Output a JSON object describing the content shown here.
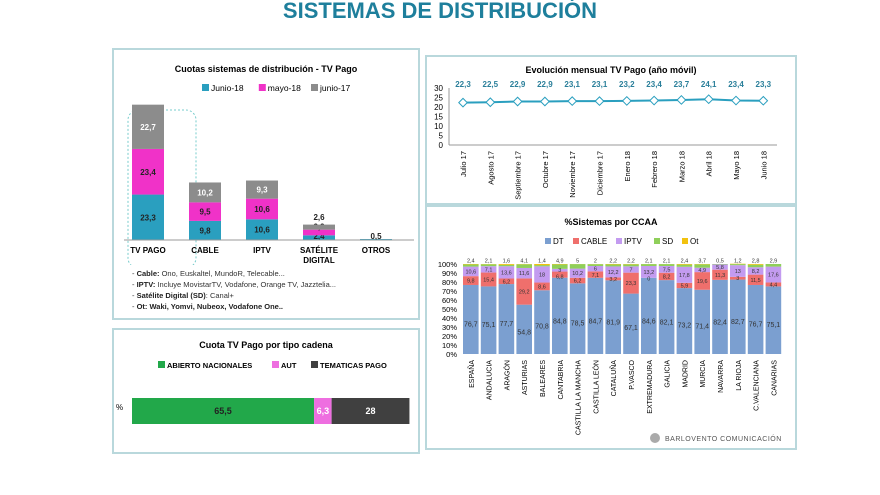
{
  "page_title": "SISTEMAS DE DISTRIBUCIÓN",
  "brand": "BARLOVENTO COMUNICACIÓN",
  "chart_data": [
    {
      "type": "bar",
      "stacked": true,
      "title": "Cuotas sistemas de distribución - TV Pago",
      "categories": [
        "TV PAGO",
        "CABLE",
        "IPTV",
        "SATÉLITE DIGITAL",
        "OTROS"
      ],
      "series": [
        {
          "name": "Junio-18",
          "values": [
            23.3,
            9.8,
            10.6,
            2.4,
            0.5
          ]
        },
        {
          "name": "mayo-18",
          "values": [
            23.4,
            9.5,
            10.6,
            2.9,
            null
          ]
        },
        {
          "name": "junio-17",
          "values": [
            22.7,
            10.2,
            9.3,
            2.6,
            null
          ]
        }
      ],
      "colors": [
        "#2a9fbf",
        "#f032c8",
        "#8c8c8c"
      ],
      "legend": "top",
      "highlighted": "TV PAGO"
    },
    {
      "type": "line",
      "title": "Evolución mensual TV Pago (año móvil)",
      "x": [
        "Julio 17",
        "Agosto 17",
        "Septiembre 17",
        "Octubre 17",
        "Noviembre 17",
        "Diciembre 17",
        "Enero 18",
        "Febrero 18",
        "Marzo 18",
        "Abril 18",
        "Mayo 18",
        "Junio 18"
      ],
      "values": [
        22.3,
        22.5,
        22.9,
        22.9,
        23.1,
        23.1,
        23.2,
        23.4,
        23.7,
        24.1,
        23.4,
        23.3
      ],
      "ylim": [
        0,
        30
      ],
      "yticks": [
        0,
        5,
        10,
        15,
        20,
        25,
        30
      ],
      "color": "#2a9fbf"
    },
    {
      "type": "bar",
      "stacked": true,
      "percent": true,
      "title": "%Sistemas por CCAA",
      "categories": [
        "ESPAÑA",
        "ANDALUCIA",
        "ARAGÓN",
        "ASTURIAS",
        "BALEARES",
        "CANTABRIA",
        "CASTILLA LA MANCHA",
        "CASTILLA LEÓN",
        "CATALUÑA",
        "P.VASCO",
        "EXTREMADURA",
        "GALICIA",
        "MADRID",
        "MURCIA",
        "NAVARRA",
        "LA RIOJA",
        "C.VALENCIANA",
        "CANARIAS"
      ],
      "series": [
        {
          "name": "DT",
          "values": [
            76.7,
            75.1,
            77.7,
            54.8,
            70.8,
            84.8,
            78.5,
            84.7,
            81.9,
            67.1,
            84.6,
            82.1,
            73.2,
            71.4,
            82.4,
            82.7,
            76.7,
            75.1
          ]
        },
        {
          "name": "CABLE",
          "values": [
            9.8,
            15.4,
            6.2,
            29.2,
            8.6,
            6.8,
            6.2,
            7.1,
            3.2,
            23.3,
            0,
            8.2,
            5.9,
            19.6,
            11.3,
            3,
            11.5,
            4.4
          ]
        },
        {
          "name": "IPTV",
          "values": [
            10.6,
            7.1,
            13.6,
            11.6,
            18,
            3,
            10.2,
            6,
            12.2,
            7,
            13.2,
            7.5,
            17.8,
            4.9,
            5.8,
            13,
            8.2,
            17.6
          ]
        },
        {
          "name": "SD",
          "values": [
            2.4,
            2.1,
            1.6,
            4.1,
            1.4,
            4.9,
            5,
            2,
            2.2,
            2.2,
            2.1,
            2.1,
            2.4,
            3.7,
            0.5,
            1.2,
            2.8,
            2.9
          ]
        },
        {
          "name": "Ot",
          "values": [
            0.5,
            0.3,
            0.9,
            0.3,
            1.2,
            0.5,
            0.1,
            0.2,
            0.5,
            0.4,
            0.1,
            0.1,
            0.7,
            0.4,
            0,
            0.4,
            0.8,
            0
          ]
        }
      ],
      "colors": [
        "#7b9fd0",
        "#ef6f6c",
        "#c39bf0",
        "#8fcf5a",
        "#f2c20f"
      ],
      "yticks": [
        "0%",
        "10%",
        "20%",
        "30%",
        "40%",
        "50%",
        "60%",
        "70%",
        "80%",
        "90%",
        "100%"
      ],
      "legend": "top"
    },
    {
      "type": "bar",
      "stacked": true,
      "horizontal": true,
      "title": "Cuota TV Pago por tipo cadena",
      "categories": [
        "%"
      ],
      "series": [
        {
          "name": "ABIERTO NACIONALES",
          "values": [
            65.5
          ]
        },
        {
          "name": "AUT",
          "values": [
            6.3
          ]
        },
        {
          "name": "TEMATICAS PAGO",
          "values": [
            28
          ]
        }
      ],
      "colors": [
        "#22a84a",
        "#ee6ee0",
        "#404040"
      ],
      "legend": "top"
    }
  ],
  "notes": [
    {
      "label": "Cable:",
      "text": " Ono, Euskaltel, MundoR, Telecable..."
    },
    {
      "label": "IPTV:",
      "text": " Incluye MovistarTV, Vodafone, Orange TV, Jazztelia..."
    },
    {
      "label": "Satélite Digital (SD)",
      "text": ": Canal+"
    },
    {
      "label": "",
      "text": "Ot: Waki, Yomvi, Nubeox, Vodafone One.."
    }
  ]
}
